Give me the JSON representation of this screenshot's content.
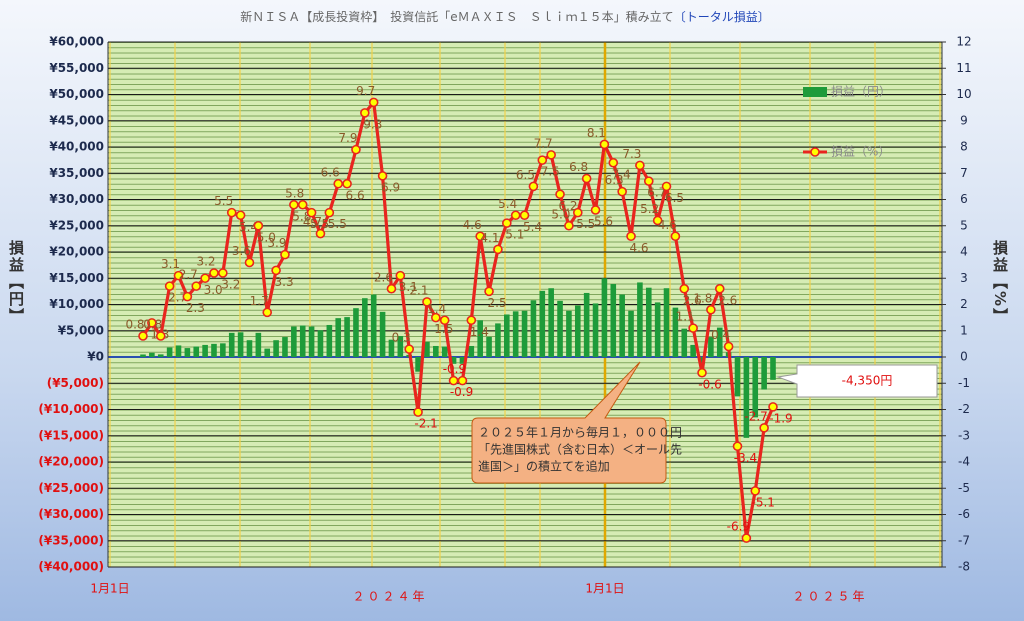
{
  "chart_data": {
    "type": "combo",
    "title": "新ＮＩＳＡ【成長投資枠】　投資信託「eＭＡＸＩＳ　Ｓｌｉｍ１５本」積み立て",
    "title_suffix": "〔トータル損益〕",
    "ylabel": "損益【円】",
    "y2label": "損益【%】",
    "x_labels": [
      "1月1日",
      "1月1日"
    ],
    "year_labels": [
      "２０２４年",
      "２０２５年"
    ],
    "callout": "-4,350円",
    "note": [
      "２０２５年１月から毎月１，０００円",
      "「先進国株式（含む日本）＜オール先",
      "進国＞」の積立てを追加"
    ],
    "legend": "upper right",
    "grid": true,
    "series": [
      {
        "name": "損益（円）",
        "type": "bar",
        "color": "#1e9b3a",
        "values": [
          480,
          800,
          500,
          1800,
          2200,
          1700,
          2000,
          2300,
          2500,
          2600,
          4600,
          4700,
          3200,
          4600,
          1600,
          3200,
          3800,
          5800,
          6000,
          5800,
          5100,
          6100,
          7400,
          7600,
          9300,
          11200,
          11900,
          8600,
          3300,
          4000,
          400,
          -2800,
          2900,
          2100,
          2000,
          -1300,
          -1300,
          2100,
          7000,
          3840,
          6400,
          8100,
          8700,
          8800,
          10800,
          12600,
          13100,
          10700,
          8800,
          9800,
          12200,
          10200,
          15000,
          13900,
          11900,
          8800,
          14200,
          13200,
          10400,
          13100,
          9400,
          5400,
          2300,
          -1300,
          3800,
          5600,
          900,
          -7500,
          -15400,
          -11500,
          -6200,
          -4350
        ]
      },
      {
        "name": "損益（%）",
        "type": "line",
        "axis": "y2",
        "color": "#e8251e",
        "marker_color": "#ffff00",
        "values": [
          0.8,
          1.3,
          0.8,
          2.7,
          3.1,
          2.3,
          2.7,
          3,
          3.2,
          3.2,
          5.5,
          5.4,
          3.6,
          5,
          1.7,
          3.3,
          3.9,
          5.8,
          5.8,
          5.5,
          4.7,
          5.5,
          6.6,
          6.6,
          7.9,
          9.3,
          9.7,
          6.9,
          2.6,
          3.1,
          0.3,
          -2.1,
          2.1,
          1.5,
          1.4,
          -0.9,
          -0.9,
          1.4,
          4.6,
          2.5,
          4.1,
          5.1,
          5.4,
          5.4,
          6.5,
          7.5,
          7.7,
          6.2,
          5,
          5.5,
          6.8,
          5.6,
          8.1,
          7.4,
          6.3,
          4.6,
          7.3,
          6.7,
          5.2,
          6.5,
          4.6,
          2.6,
          1.1,
          -0.6,
          1.8,
          2.6,
          0.4,
          -3.4,
          -6.9,
          -5.1,
          -2.7,
          -1.9
        ],
        "value_labels": [
          "0.8",
          "1.3",
          "0.8",
          "2.7",
          "3.1",
          "2.3",
          "2.7",
          "3.0",
          "3.2",
          "3.2",
          "5.5",
          "5.4",
          "3.6",
          "5.0",
          "1.7",
          "3.3",
          "3.9",
          "5.8",
          "5.8",
          "5.5",
          "4.7",
          "5.5",
          "6.6",
          "6.6",
          "7.9",
          "9.3",
          "9.7",
          "6.9",
          "2.6",
          "3.1",
          "0.3",
          "-2.1",
          "2.1",
          "1.5",
          "1.4",
          "-0.9",
          "-0.9",
          "1.4",
          "4.6",
          "2.5",
          "4.1",
          "5.1",
          "5.4",
          "5.4",
          "6.5",
          "7.5",
          "7.7",
          "6.2",
          "5.0",
          "5.5",
          "6.8",
          "5.6",
          "8.1",
          "7.4",
          "6.3",
          "4.6",
          "7.3",
          "6.7",
          "5.2",
          "6.5",
          "4.6",
          "2.6",
          "1.1",
          "-0.6",
          "1.8",
          "2.6",
          "0.4",
          "-3.4",
          "-6.9",
          "-5.1",
          "-2.7",
          "-1.9"
        ]
      }
    ],
    "ylim": [
      -40000,
      60000
    ],
    "yticks": [
      {
        "value": 60000,
        "label": "¥60,000"
      },
      {
        "value": 55000,
        "label": "¥55,000"
      },
      {
        "value": 50000,
        "label": "¥50,000"
      },
      {
        "value": 45000,
        "label": "¥45,000"
      },
      {
        "value": 40000,
        "label": "¥40,000"
      },
      {
        "value": 35000,
        "label": "¥35,000"
      },
      {
        "value": 30000,
        "label": "¥30,000"
      },
      {
        "value": 25000,
        "label": "¥25,000"
      },
      {
        "value": 20000,
        "label": "¥20,000"
      },
      {
        "value": 15000,
        "label": "¥15,000"
      },
      {
        "value": 10000,
        "label": "¥10,000"
      },
      {
        "value": 5000,
        "label": "¥5,000"
      },
      {
        "value": 0,
        "label": "¥0"
      },
      {
        "value": -5000,
        "label": "(¥5,000)"
      },
      {
        "value": -10000,
        "label": "(¥10,000)"
      },
      {
        "value": -15000,
        "label": "(¥15,000)"
      },
      {
        "value": -20000,
        "label": "(¥20,000)"
      },
      {
        "value": -25000,
        "label": "(¥25,000)"
      },
      {
        "value": -30000,
        "label": "(¥30,000)"
      },
      {
        "value": -35000,
        "label": "(¥35,000)"
      },
      {
        "value": -40000,
        "label": "(¥40,000)"
      }
    ],
    "y2lim": [
      -8,
      12
    ],
    "y2ticks": [
      12,
      11,
      10,
      9,
      8,
      7,
      6,
      5,
      4,
      3,
      2,
      1,
      0,
      -1,
      -2,
      -3,
      -4,
      -5,
      -6,
      -7,
      -8
    ]
  }
}
